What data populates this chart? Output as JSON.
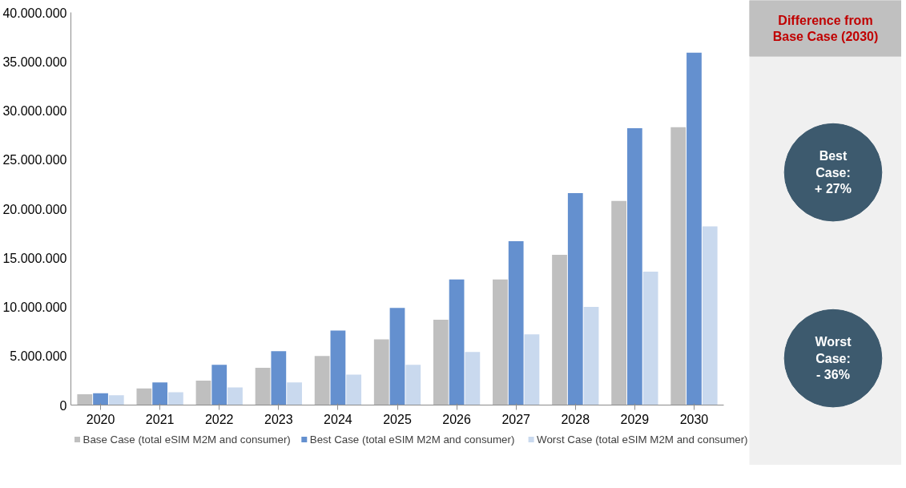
{
  "chart_data": {
    "type": "bar",
    "categories": [
      "2020",
      "2021",
      "2022",
      "2023",
      "2024",
      "2025",
      "2026",
      "2027",
      "2028",
      "2029",
      "2030"
    ],
    "series": [
      {
        "name": "Base Case (total eSIM M2M and consumer)",
        "color": "#bfbfbf",
        "values": [
          1100000,
          1700000,
          2500000,
          3800000,
          5000000,
          6700000,
          8700000,
          12800000,
          15300000,
          20800000,
          28300000
        ]
      },
      {
        "name": "Best Case (total eSIM M2M and consumer)",
        "color": "#6490cf",
        "values": [
          1200000,
          2300000,
          4100000,
          5500000,
          7600000,
          9900000,
          12800000,
          16700000,
          21600000,
          28200000,
          35900000
        ]
      },
      {
        "name": "Worst Case (total eSIM M2M and consumer)",
        "color": "#c9d9ee",
        "values": [
          1000000,
          1300000,
          1800000,
          2300000,
          3100000,
          4100000,
          5400000,
          7200000,
          10000000,
          13600000,
          18200000
        ]
      }
    ],
    "ylim": [
      0,
      40000000
    ],
    "yticks": [
      {
        "value": 0,
        "label": "0"
      },
      {
        "value": 5000000,
        "label": "5.000.000"
      },
      {
        "value": 10000000,
        "label": "10.000.000"
      },
      {
        "value": 15000000,
        "label": "15.000.000"
      },
      {
        "value": 20000000,
        "label": "20.000.000"
      },
      {
        "value": 25000000,
        "label": "25.000.000"
      },
      {
        "value": 30000000,
        "label": "30.000.000"
      },
      {
        "value": 35000000,
        "label": "35.000.000"
      },
      {
        "value": 40000000,
        "label": "40.000.000"
      }
    ],
    "grid": false,
    "legend": "bottom",
    "annotations": [
      "Difference from\nBase Case (2030)",
      "Best\nCase:\n+ 27%",
      "Worst\nCase:\n- 36%"
    ]
  }
}
